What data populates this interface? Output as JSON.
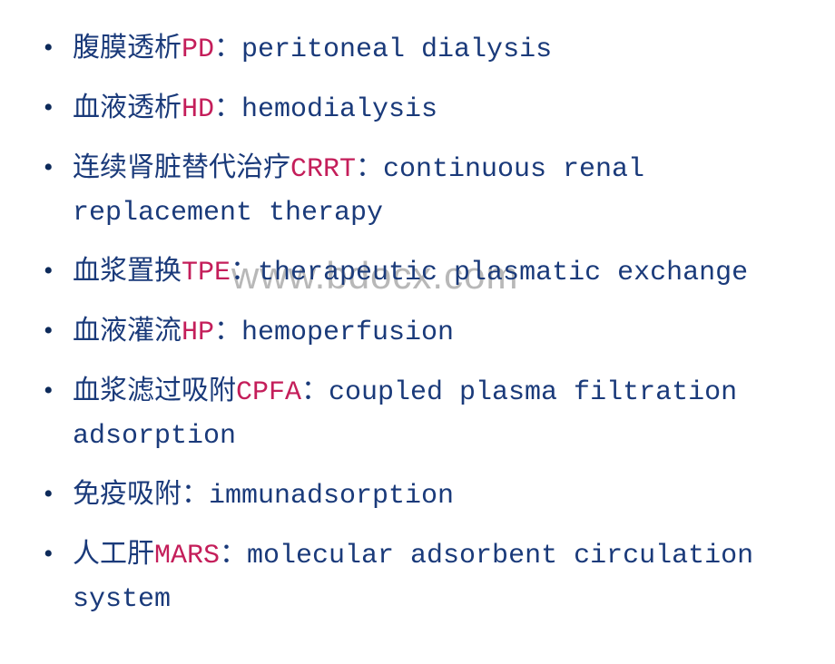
{
  "watermark": "www.bdocx.com",
  "items": [
    {
      "chinese": "腹膜透析",
      "abbrev": "PD",
      "english": "peritoneal dialysis"
    },
    {
      "chinese": "血液透析",
      "abbrev": "HD",
      "english": "hemodialysis"
    },
    {
      "chinese": "连续肾脏替代治疗",
      "abbrev": "CRRT",
      "english": "continuous renal replacement therapy"
    },
    {
      "chinese": "血浆置换",
      "abbrev": "TPE",
      "english": "therapeutic plasmatic exchange"
    },
    {
      "chinese": "血液灌流",
      "abbrev": "HP",
      "english": "hemoperfusion"
    },
    {
      "chinese": "血浆滤过吸附",
      "abbrev": "CPFA",
      "english": "coupled plasma filtration adsorption"
    },
    {
      "chinese": "免疫吸附",
      "abbrev": "",
      "english": "immunadsorption"
    },
    {
      "chinese": "人工肝",
      "abbrev": "MARS",
      "english": "molecular adsorbent circulation system"
    }
  ],
  "styling": {
    "background_color": "#ffffff",
    "text_color": "#1a3a7a",
    "abbrev_color": "#c41e5a",
    "watermark_color": "#b8b8b8",
    "bullet_color": "#0d2a5a",
    "font_size": 30,
    "watermark_font_size": 42,
    "line_height": 1.5,
    "chinese_font": "KaiTi",
    "english_font": "Courier New"
  }
}
